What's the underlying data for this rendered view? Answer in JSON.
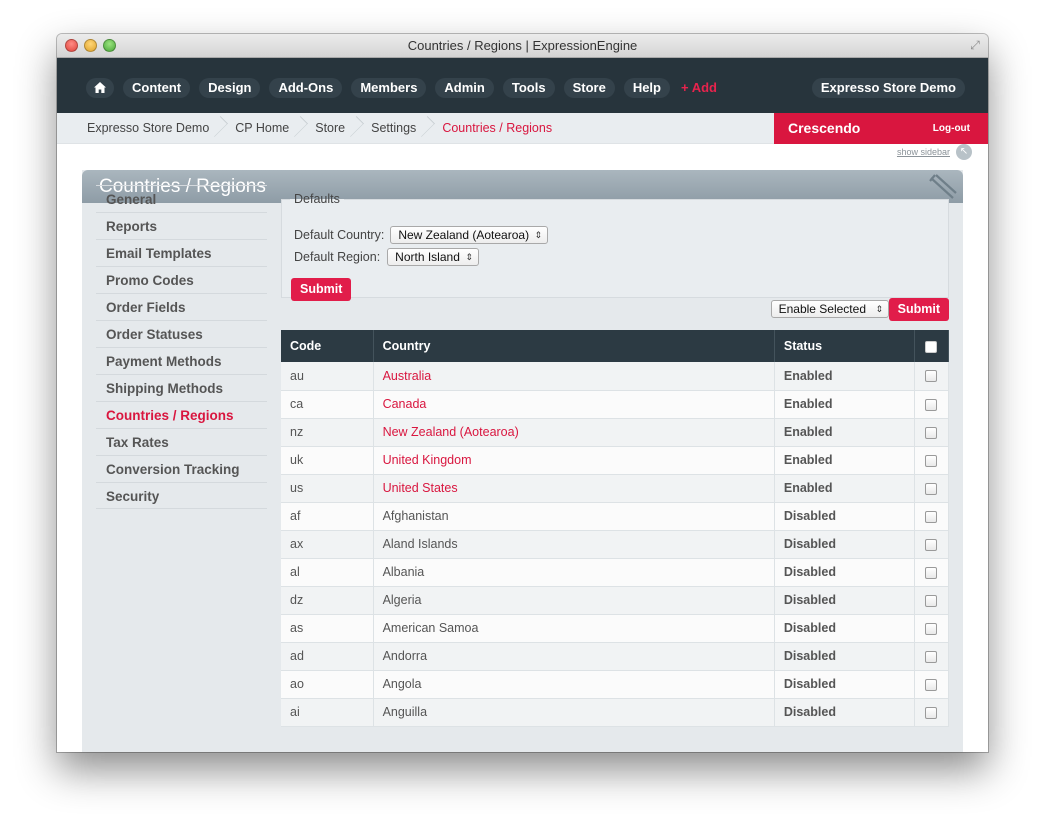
{
  "window": {
    "title": "Countries / Regions | ExpressionEngine"
  },
  "topnav": {
    "items": [
      "Content",
      "Design",
      "Add-Ons",
      "Members",
      "Admin",
      "Tools",
      "Store",
      "Help"
    ],
    "add_label": "+ Add",
    "site_name": "Expresso Store Demo"
  },
  "breadcrumbs": [
    "Expresso Store Demo",
    "CP Home",
    "Store",
    "Settings",
    "Countries / Regions"
  ],
  "user": {
    "name": "Crescendo",
    "logout": "Log-out"
  },
  "sidebar_toggle": "show sidebar",
  "page": {
    "title": "Countries / Regions"
  },
  "leftnav": {
    "items": [
      "General",
      "Reports",
      "Email Templates",
      "Promo Codes",
      "Order Fields",
      "Order Statuses",
      "Payment Methods",
      "Shipping Methods",
      "Countries / Regions",
      "Tax Rates",
      "Conversion Tracking",
      "Security"
    ],
    "active": "Countries / Regions"
  },
  "defaults": {
    "legend": "Defaults",
    "country_label": "Default Country:",
    "country_value": "New Zealand (Aotearoa)",
    "region_label": "Default Region:",
    "region_value": "North Island",
    "submit": "Submit"
  },
  "bulk": {
    "action": "Enable Selected",
    "submit": "Submit"
  },
  "table": {
    "headers": [
      "Code",
      "Country",
      "Status"
    ],
    "rows": [
      {
        "code": "au",
        "country": "Australia",
        "status": "Enabled"
      },
      {
        "code": "ca",
        "country": "Canada",
        "status": "Enabled"
      },
      {
        "code": "nz",
        "country": "New Zealand (Aotearoa)",
        "status": "Enabled"
      },
      {
        "code": "uk",
        "country": "United Kingdom",
        "status": "Enabled"
      },
      {
        "code": "us",
        "country": "United States",
        "status": "Enabled"
      },
      {
        "code": "af",
        "country": "Afghanistan",
        "status": "Disabled"
      },
      {
        "code": "ax",
        "country": "Aland Islands",
        "status": "Disabled"
      },
      {
        "code": "al",
        "country": "Albania",
        "status": "Disabled"
      },
      {
        "code": "dz",
        "country": "Algeria",
        "status": "Disabled"
      },
      {
        "code": "as",
        "country": "American Samoa",
        "status": "Disabled"
      },
      {
        "code": "ad",
        "country": "Andorra",
        "status": "Disabled"
      },
      {
        "code": "ao",
        "country": "Angola",
        "status": "Disabled"
      },
      {
        "code": "ai",
        "country": "Anguilla",
        "status": "Disabled"
      }
    ]
  },
  "colors": {
    "accent": "#d9163f",
    "nav_bg": "#27343c",
    "enabled": "#2a7a1d",
    "disabled": "#d10f2d"
  }
}
